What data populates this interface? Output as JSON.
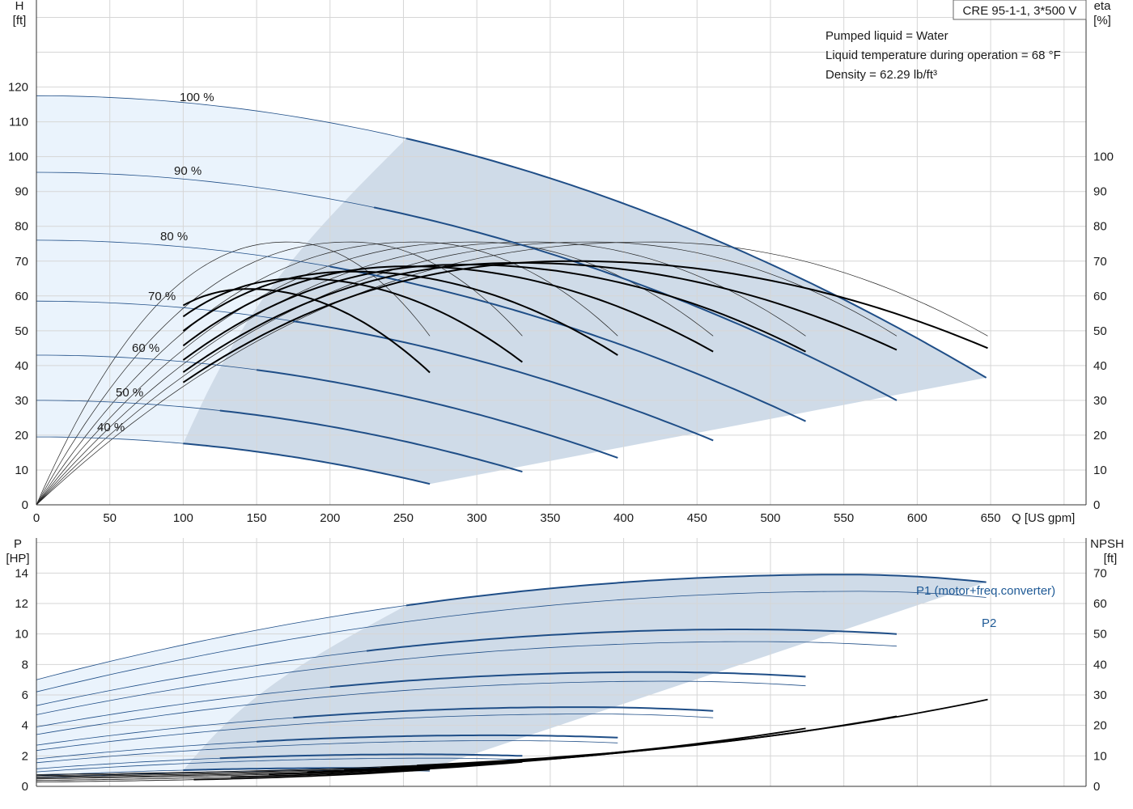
{
  "chart_data": [
    {
      "type": "line",
      "title": "CRE 95-1-1, 3*500 V",
      "info": [
        "Pumped liquid = Water",
        "Liquid temperature during operation = 68 °F",
        "Density = 62.29 lb/ft³"
      ],
      "ylabel_left": [
        "H",
        "[ft]"
      ],
      "ylabel_right": [
        "eta",
        "[%]"
      ],
      "xlabel": "Q [US gpm]",
      "xlim": [
        0,
        715
      ],
      "ylim_left": [
        0,
        145
      ],
      "ylim_right": [
        0,
        145
      ],
      "x_ticks": [
        0,
        50,
        100,
        150,
        200,
        250,
        300,
        350,
        400,
        450,
        500,
        550,
        600,
        650
      ],
      "y_ticks_left": [
        0,
        10,
        20,
        30,
        40,
        50,
        60,
        70,
        80,
        90,
        100,
        110,
        120
      ],
      "y_ticks_right": [
        0,
        10,
        20,
        30,
        40,
        50,
        60,
        70,
        80,
        90,
        100
      ],
      "grid": true,
      "colors": {
        "op_area": "#cfdbe8",
        "light_area": "#eaf3fc",
        "head_curve": "#1f4e87",
        "eta_curve": "#000000"
      },
      "head_series": [
        {
          "name": "100 %",
          "H0": 117.5,
          "qmax": 647,
          "hend": 36.5
        },
        {
          "name": "90 %",
          "H0": 95.5,
          "qmax": 586,
          "hend": 30
        },
        {
          "name": "80 %",
          "H0": 76,
          "qmax": 524,
          "hend": 24
        },
        {
          "name": "70 %",
          "H0": 58.5,
          "qmax": 461,
          "hend": 18.5
        },
        {
          "name": "60 %",
          "H0": 43,
          "qmax": 396,
          "hend": 13.5
        },
        {
          "name": "50 %",
          "H0": 30,
          "qmax": 331,
          "hend": 9.5
        },
        {
          "name": "40 %",
          "H0": 19.5,
          "qmax": 268,
          "hend": 6
        }
      ],
      "eta_series": [
        {
          "qpeak": 368,
          "epeak": 70,
          "qend": 648,
          "eend": 45
        },
        {
          "qpeak": 330,
          "epeak": 69.5,
          "qend": 586,
          "eend": 44.5
        },
        {
          "qpeak": 292,
          "epeak": 69,
          "qend": 524,
          "eend": 44
        },
        {
          "qpeak": 254,
          "epeak": 68.5,
          "qend": 461,
          "eend": 44
        },
        {
          "qpeak": 216,
          "epeak": 67,
          "qend": 396,
          "eend": 43
        },
        {
          "qpeak": 180,
          "epeak": 65,
          "qend": 331,
          "eend": 41
        },
        {
          "qpeak": 145,
          "epeak": 62,
          "qend": 268,
          "eend": 38
        }
      ],
      "thin_eta": [
        {
          "qpeak": 420,
          "epeak": 75.5,
          "qend": 648,
          "eend": 48.5
        },
        {
          "qpeak": 380,
          "epeak": 75.5,
          "qend": 586,
          "eend": 48.5
        },
        {
          "qpeak": 340,
          "epeak": 75.5,
          "qend": 524,
          "eend": 48.5
        },
        {
          "qpeak": 300,
          "epeak": 75.5,
          "qend": 461,
          "eend": 48.5
        },
        {
          "qpeak": 260,
          "epeak": 75.5,
          "qend": 396,
          "eend": 48.5
        },
        {
          "qpeak": 215,
          "epeak": 75.5,
          "qend": 331,
          "eend": 48.5
        },
        {
          "qpeak": 172,
          "epeak": 75.5,
          "qend": 268,
          "eend": 48.5
        }
      ]
    },
    {
      "type": "line",
      "ylabel_left": [
        "P",
        "[HP]"
      ],
      "ylabel_right": [
        "NPSH",
        "[ft]"
      ],
      "xlim": [
        0,
        715
      ],
      "ylim_left": [
        0,
        16.3
      ],
      "ylim_right": [
        0,
        81.5
      ],
      "y_ticks_left": [
        0,
        2,
        4,
        6,
        8,
        10,
        12,
        14
      ],
      "y_ticks_right": [
        0,
        10,
        20,
        30,
        40,
        50,
        60,
        70
      ],
      "labels": {
        "p1": "P1 (motor+freq.converter)",
        "p2": "P2"
      },
      "p1_series": [
        {
          "p0": 7.0,
          "peak": 13.9,
          "qpeak": 550,
          "qmax": 647,
          "pend": 13.4
        },
        {
          "p0": 5.3,
          "peak": 10.3,
          "qpeak": 480,
          "qmax": 586,
          "pend": 10.0
        },
        {
          "p0": 3.9,
          "peak": 7.5,
          "qpeak": 420,
          "qmax": 524,
          "pend": 7.2
        },
        {
          "p0": 2.7,
          "peak": 5.2,
          "qpeak": 370,
          "qmax": 461,
          "pend": 4.95
        },
        {
          "p0": 1.8,
          "peak": 3.35,
          "qpeak": 310,
          "qmax": 396,
          "pend": 3.2
        },
        {
          "p0": 1.15,
          "peak": 2.1,
          "qpeak": 260,
          "qmax": 331,
          "pend": 2.0
        },
        {
          "p0": 0.7,
          "peak": 1.2,
          "qpeak": 210,
          "qmax": 268,
          "pend": 1.15
        }
      ],
      "p2_series": [
        {
          "p0": 6.2,
          "peak": 12.8,
          "qpeak": 560,
          "qmax": 647,
          "pend": 12.4
        },
        {
          "p0": 4.7,
          "peak": 9.5,
          "qpeak": 490,
          "qmax": 586,
          "pend": 9.2
        },
        {
          "p0": 3.4,
          "peak": 6.9,
          "qpeak": 430,
          "qmax": 524,
          "pend": 6.6
        },
        {
          "p0": 2.35,
          "peak": 4.75,
          "qpeak": 380,
          "qmax": 461,
          "pend": 4.5
        },
        {
          "p0": 1.55,
          "peak": 3.0,
          "qpeak": 320,
          "qmax": 396,
          "pend": 2.85
        },
        {
          "p0": 0.95,
          "peak": 1.85,
          "qpeak": 270,
          "qmax": 331,
          "pend": 1.75
        },
        {
          "p0": 0.55,
          "peak": 1.05,
          "qpeak": 215,
          "qmax": 268,
          "pend": 1.0
        }
      ],
      "npsh_series": [
        {
          "qmax": 648,
          "nend": 28.5,
          "nbase": 11
        },
        {
          "qmax": 586,
          "nend": 23,
          "nbase": 10
        },
        {
          "qmax": 524,
          "nend": 19,
          "nbase": 9
        },
        {
          "qmax": 461,
          "nend": 14.5,
          "nbase": 8
        },
        {
          "qmax": 396,
          "nend": 11,
          "nbase": 7
        },
        {
          "qmax": 331,
          "nend": 8,
          "nbase": 5.5
        },
        {
          "qmax": 268,
          "nend": 5.5,
          "nbase": 4
        }
      ]
    }
  ]
}
